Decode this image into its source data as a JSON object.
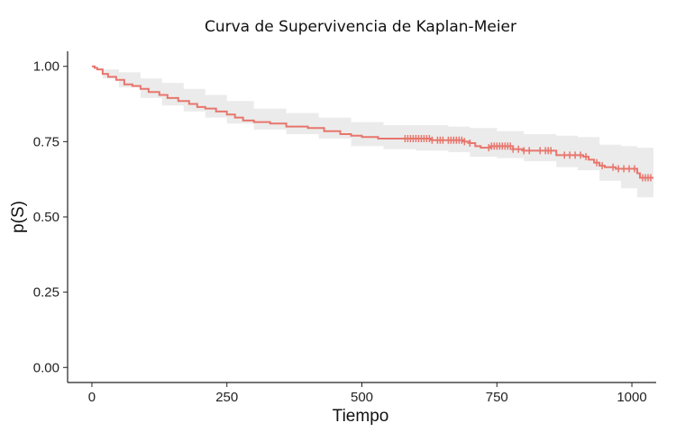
{
  "chart_data": {
    "type": "line",
    "title": "Curva de Supervivencia de Kaplan-Meier",
    "xlabel": "Tiempo",
    "ylabel": "p(S)",
    "xlim": [
      -45,
      1045
    ],
    "ylim": [
      -0.05,
      1.05
    ],
    "x_ticks": [
      0,
      250,
      500,
      750,
      1000
    ],
    "x_tick_labels": [
      "0",
      "250",
      "500",
      "750",
      "1000"
    ],
    "y_ticks": [
      0,
      0.25,
      0.5,
      0.75,
      1.0
    ],
    "y_tick_labels": [
      "0.00",
      "0.25",
      "0.50",
      "0.75",
      "1.00"
    ],
    "grid": false,
    "colors": {
      "line": "#e8766d",
      "band": "#ebebeb"
    },
    "series": [
      {
        "points": [
          [
            0,
            1.0
          ],
          [
            5,
            0.995
          ],
          [
            10,
            0.99
          ],
          [
            20,
            0.975
          ],
          [
            30,
            0.965
          ],
          [
            45,
            0.955
          ],
          [
            60,
            0.94
          ],
          [
            75,
            0.935
          ],
          [
            90,
            0.925
          ],
          [
            105,
            0.915
          ],
          [
            125,
            0.905
          ],
          [
            140,
            0.895
          ],
          [
            160,
            0.885
          ],
          [
            180,
            0.875
          ],
          [
            195,
            0.865
          ],
          [
            210,
            0.86
          ],
          [
            230,
            0.85
          ],
          [
            250,
            0.84
          ],
          [
            265,
            0.83
          ],
          [
            280,
            0.82
          ],
          [
            300,
            0.815
          ],
          [
            330,
            0.81
          ],
          [
            360,
            0.8
          ],
          [
            400,
            0.795
          ],
          [
            430,
            0.785
          ],
          [
            460,
            0.775
          ],
          [
            480,
            0.77
          ],
          [
            500,
            0.765
          ],
          [
            530,
            0.76
          ],
          [
            560,
            0.76
          ],
          [
            600,
            0.76
          ],
          [
            630,
            0.755
          ],
          [
            660,
            0.755
          ],
          [
            690,
            0.75
          ],
          [
            700,
            0.745
          ],
          [
            710,
            0.735
          ],
          [
            720,
            0.73
          ],
          [
            740,
            0.735
          ],
          [
            760,
            0.735
          ],
          [
            780,
            0.725
          ],
          [
            800,
            0.72
          ],
          [
            820,
            0.72
          ],
          [
            850,
            0.72
          ],
          [
            860,
            0.705
          ],
          [
            880,
            0.705
          ],
          [
            900,
            0.705
          ],
          [
            910,
            0.7
          ],
          [
            920,
            0.69
          ],
          [
            930,
            0.68
          ],
          [
            940,
            0.67
          ],
          [
            950,
            0.665
          ],
          [
            970,
            0.66
          ],
          [
            1000,
            0.66
          ],
          [
            1010,
            0.645
          ],
          [
            1015,
            0.63
          ],
          [
            1040,
            0.63
          ]
        ],
        "ci_upper": [
          [
            0,
            1.0
          ],
          [
            20,
            0.99
          ],
          [
            50,
            0.98
          ],
          [
            90,
            0.96
          ],
          [
            130,
            0.945
          ],
          [
            170,
            0.925
          ],
          [
            210,
            0.905
          ],
          [
            250,
            0.885
          ],
          [
            300,
            0.86
          ],
          [
            360,
            0.845
          ],
          [
            420,
            0.83
          ],
          [
            480,
            0.815
          ],
          [
            540,
            0.805
          ],
          [
            600,
            0.805
          ],
          [
            660,
            0.8
          ],
          [
            700,
            0.795
          ],
          [
            750,
            0.785
          ],
          [
            800,
            0.775
          ],
          [
            860,
            0.77
          ],
          [
            900,
            0.765
          ],
          [
            940,
            0.74
          ],
          [
            980,
            0.735
          ],
          [
            1010,
            0.73
          ],
          [
            1040,
            0.72
          ]
        ],
        "ci_lower": [
          [
            0,
            1.0
          ],
          [
            20,
            0.96
          ],
          [
            50,
            0.93
          ],
          [
            90,
            0.895
          ],
          [
            130,
            0.87
          ],
          [
            170,
            0.85
          ],
          [
            210,
            0.83
          ],
          [
            250,
            0.81
          ],
          [
            300,
            0.79
          ],
          [
            360,
            0.775
          ],
          [
            420,
            0.76
          ],
          [
            480,
            0.735
          ],
          [
            540,
            0.725
          ],
          [
            600,
            0.72
          ],
          [
            660,
            0.715
          ],
          [
            700,
            0.7
          ],
          [
            750,
            0.695
          ],
          [
            800,
            0.685
          ],
          [
            860,
            0.665
          ],
          [
            900,
            0.655
          ],
          [
            940,
            0.62
          ],
          [
            980,
            0.595
          ],
          [
            1010,
            0.565
          ],
          [
            1040,
            0.545
          ]
        ],
        "censored": [
          580,
          585,
          590,
          595,
          600,
          605,
          610,
          615,
          620,
          625,
          630,
          640,
          645,
          650,
          660,
          665,
          670,
          675,
          680,
          685,
          690,
          700,
          735,
          740,
          745,
          750,
          755,
          760,
          765,
          770,
          775,
          780,
          790,
          800,
          810,
          830,
          840,
          845,
          850,
          875,
          885,
          895,
          905,
          915,
          935,
          945,
          965,
          975,
          985,
          995,
          1005,
          1020,
          1025,
          1030,
          1035
        ]
      }
    ]
  }
}
